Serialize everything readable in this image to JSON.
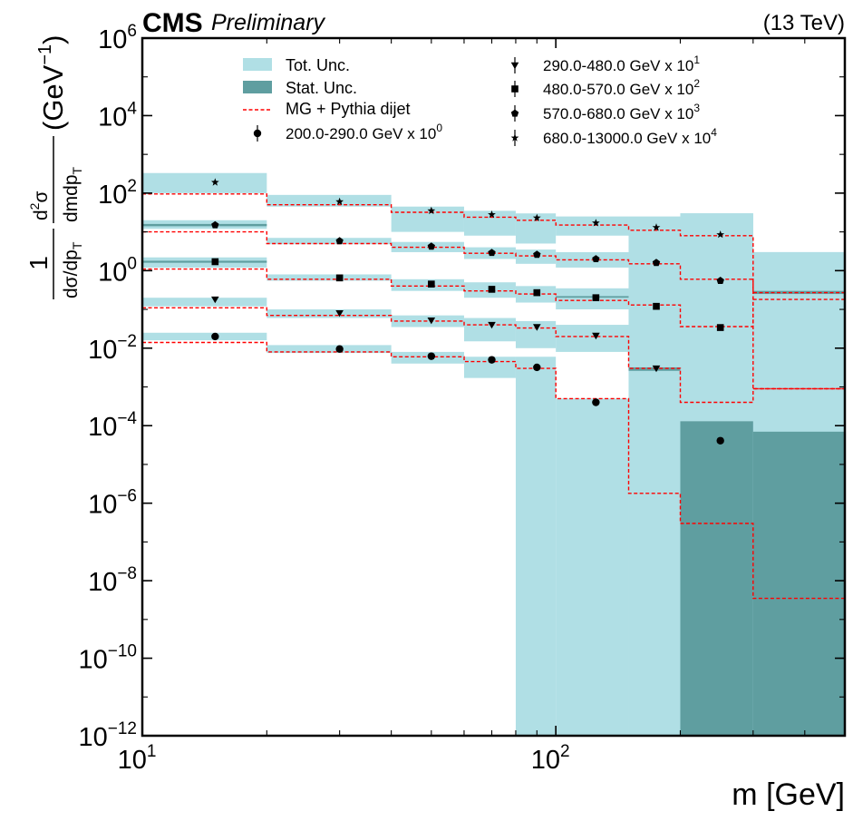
{
  "header": {
    "experiment": "CMS",
    "status": "Preliminary",
    "energy": "(13 TeV)"
  },
  "colors": {
    "total_unc": "#b0dfe5",
    "stat_unc": "#5f9ea0",
    "prediction": "#ff0000",
    "data": "#000000"
  },
  "chart_data": {
    "type": "step-histogram-with-points",
    "xlabel": "m [GeV]",
    "ylabel": {
      "numer": "1",
      "denom_main": "dσ/dp",
      "denom_sub": "T",
      "d2": "d",
      "d2sup": "2",
      "sigma": "σ",
      "dm": "dmdp",
      "unit": "(GeV",
      "unit_sup": "−1",
      "unit_close": ")"
    },
    "xscale": "log",
    "yscale": "log",
    "xlim": [
      10,
      500
    ],
    "ylim": [
      1e-12,
      1000000.0
    ],
    "x_ticks": [
      {
        "base": "10",
        "exp": "1"
      },
      {
        "base": "10",
        "exp": "2"
      }
    ],
    "y_ticks": [
      {
        "base": "10",
        "exp": "−12",
        "value": 1e-12
      },
      {
        "base": "10",
        "exp": "−10",
        "value": 1e-10
      },
      {
        "base": "10",
        "exp": "−8",
        "value": 1e-08
      },
      {
        "base": "10",
        "exp": "−6",
        "value": 1e-06
      },
      {
        "base": "10",
        "exp": "−4",
        "value": 0.0001
      },
      {
        "base": "10",
        "exp": "−2",
        "value": 0.01
      },
      {
        "base": "10",
        "exp": "0",
        "value": 1
      },
      {
        "base": "10",
        "exp": "2",
        "value": 100.0
      },
      {
        "base": "10",
        "exp": "4",
        "value": 10000.0
      },
      {
        "base": "10",
        "exp": "6",
        "value": 1000000.0
      }
    ],
    "bin_edges": [
      10,
      20,
      40,
      60,
      80,
      100,
      150,
      200,
      300,
      500
    ],
    "bin_centers": [
      15,
      30,
      50,
      70,
      90,
      125,
      175,
      250
    ],
    "legend": {
      "tot_unc": "Tot. Unc.",
      "stat_unc": "Stat. Unc.",
      "prediction": "MG + Pythia dijet"
    },
    "series": [
      {
        "name": "200.0-290.0 GeV x 10",
        "name_sup": "0",
        "marker": "circle",
        "data": [
          0.02,
          0.0095,
          0.0062,
          0.005,
          0.0032,
          0.0004,
          null,
          4.1e-05
        ],
        "prediction": [
          0.014,
          0.008,
          0.006,
          0.0045,
          0.003,
          0.0005,
          1.8e-06,
          3e-07,
          3.5e-09
        ],
        "tot_band": [
          [
            0.016,
            0.025
          ],
          [
            0.0075,
            0.012
          ],
          [
            0.004,
            0.008
          ],
          [
            0.0017,
            0.006
          ],
          [
            1e-12,
            0.006
          ],
          [
            1e-12,
            0.0005
          ],
          [
            1e-12,
            1e-05
          ],
          [
            1e-12,
            0.00013
          ],
          [
            1e-12,
            7e-05
          ]
        ],
        "stat_band": [
          null,
          null,
          null,
          null,
          null,
          null,
          null,
          [
            1e-12,
            0.00013
          ],
          [
            1e-12,
            7e-05
          ]
        ]
      },
      {
        "name": "290.0-480.0 GeV x 10",
        "name_sup": "1",
        "marker": "triangle-down",
        "data": [
          0.18,
          0.08,
          0.052,
          0.04,
          0.035,
          0.021,
          0.003,
          null
        ],
        "prediction": [
          0.11,
          0.07,
          0.05,
          0.04,
          0.033,
          0.02,
          0.003,
          0.0004,
          0.0009
        ],
        "tot_band": [
          [
            0.12,
            0.2
          ],
          [
            0.06,
            0.1
          ],
          [
            0.035,
            0.07
          ],
          [
            0.015,
            0.06
          ],
          [
            0.01,
            0.05
          ],
          [
            0.008,
            0.04
          ],
          [
            0.0025,
            0.0035
          ],
          [
            1e-12,
            0.00013
          ],
          [
            1e-12,
            7e-05
          ]
        ],
        "stat_band": [
          null,
          null,
          null,
          null,
          null,
          null,
          [
            0.0026,
            0.0032
          ],
          null,
          null
        ]
      },
      {
        "name": "480.0-570.0 GeV x 10",
        "name_sup": "2",
        "marker": "square",
        "data": [
          1.7,
          0.65,
          0.45,
          0.33,
          0.27,
          0.2,
          0.12,
          0.034
        ],
        "prediction": [
          1.1,
          0.6,
          0.4,
          0.3,
          0.25,
          0.17,
          0.13,
          0.036,
          0.18
        ],
        "tot_band": [
          [
            1.2,
            2.2
          ],
          [
            0.55,
            0.8
          ],
          [
            0.3,
            0.6
          ],
          [
            0.2,
            0.5
          ],
          [
            0.15,
            0.4
          ],
          [
            0.1,
            0.35
          ],
          [
            1e-12,
            3
          ],
          [
            1e-12,
            30
          ],
          [
            1e-12,
            3
          ]
        ],
        "stat_band": [
          [
            1.6,
            1.8
          ],
          null,
          null,
          null,
          null,
          [
            0.2,
            0.22
          ],
          null,
          null,
          [
            0.25,
            0.3
          ]
        ]
      },
      {
        "name": "570.0-680.0 GeV x 10",
        "name_sup": "3",
        "marker": "pentagon",
        "data": [
          15,
          5.8,
          4.2,
          2.9,
          2.6,
          2.0,
          1.6,
          0.55
        ],
        "prediction": [
          10,
          5,
          4,
          2.8,
          2.4,
          1.9,
          1.5,
          0.6,
          0.27
        ],
        "tot_band": [
          [
            12,
            20
          ],
          [
            4.8,
            7
          ],
          [
            3,
            5.5
          ],
          [
            2,
            4
          ],
          [
            1.5,
            3.5
          ],
          [
            1.2,
            3
          ],
          [
            1e-12,
            20
          ],
          [
            1e-12,
            30
          ],
          [
            1e-12,
            3
          ]
        ],
        "stat_band": [
          [
            14,
            16
          ],
          null,
          null,
          null,
          null,
          null,
          null,
          null,
          null
        ]
      },
      {
        "name": "680.0-13000.0 GeV x 10",
        "name_sup": "4",
        "marker": "star",
        "data": [
          190,
          60,
          35,
          28,
          23,
          17,
          13,
          8.5
        ],
        "prediction": [
          95,
          50,
          32,
          24,
          20,
          15,
          11,
          8,
          0.0009
        ],
        "tot_band": [
          [
            100,
            330
          ],
          [
            45,
            90
          ],
          [
            10,
            45
          ],
          [
            8,
            35
          ],
          [
            5,
            30
          ],
          [
            8,
            25
          ],
          [
            1e-12,
            25
          ],
          [
            1e-12,
            30
          ],
          [
            1e-12,
            3
          ]
        ],
        "stat_band": [
          null,
          null,
          null,
          null,
          null,
          null,
          null,
          null,
          null
        ]
      }
    ]
  }
}
